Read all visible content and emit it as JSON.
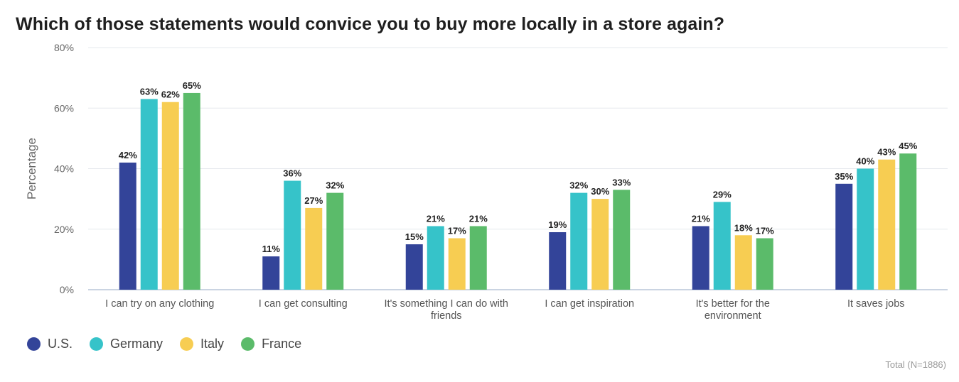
{
  "chart_data": {
    "type": "bar",
    "title": "Which of those statements would convice you to buy more locally in a store again?",
    "ylabel": "Percentage",
    "ylim": [
      0,
      80
    ],
    "yticks": [
      "0%",
      "20%",
      "40%",
      "60%",
      "80%"
    ],
    "grid": true,
    "legend_position": "bottom-left",
    "categories": [
      [
        "I can try on any clothing"
      ],
      [
        "I can get consulting"
      ],
      [
        "It's something I can do with",
        "friends"
      ],
      [
        "I can get inspiration"
      ],
      [
        "It's better for the",
        "environment"
      ],
      [
        "It saves jobs"
      ]
    ],
    "series": [
      {
        "name": "U.S.",
        "color": "#334499",
        "values": [
          42,
          11,
          15,
          19,
          21,
          35
        ]
      },
      {
        "name": "Germany",
        "color": "#36c3c9",
        "values": [
          63,
          36,
          21,
          32,
          29,
          40
        ]
      },
      {
        "name": "Italy",
        "color": "#f7cd52",
        "values": [
          62,
          27,
          17,
          30,
          18,
          43
        ]
      },
      {
        "name": "France",
        "color": "#5bbb6a",
        "values": [
          65,
          32,
          21,
          33,
          17,
          45
        ]
      }
    ],
    "value_suffix": "%",
    "footnote": "Total (N=1886)"
  }
}
